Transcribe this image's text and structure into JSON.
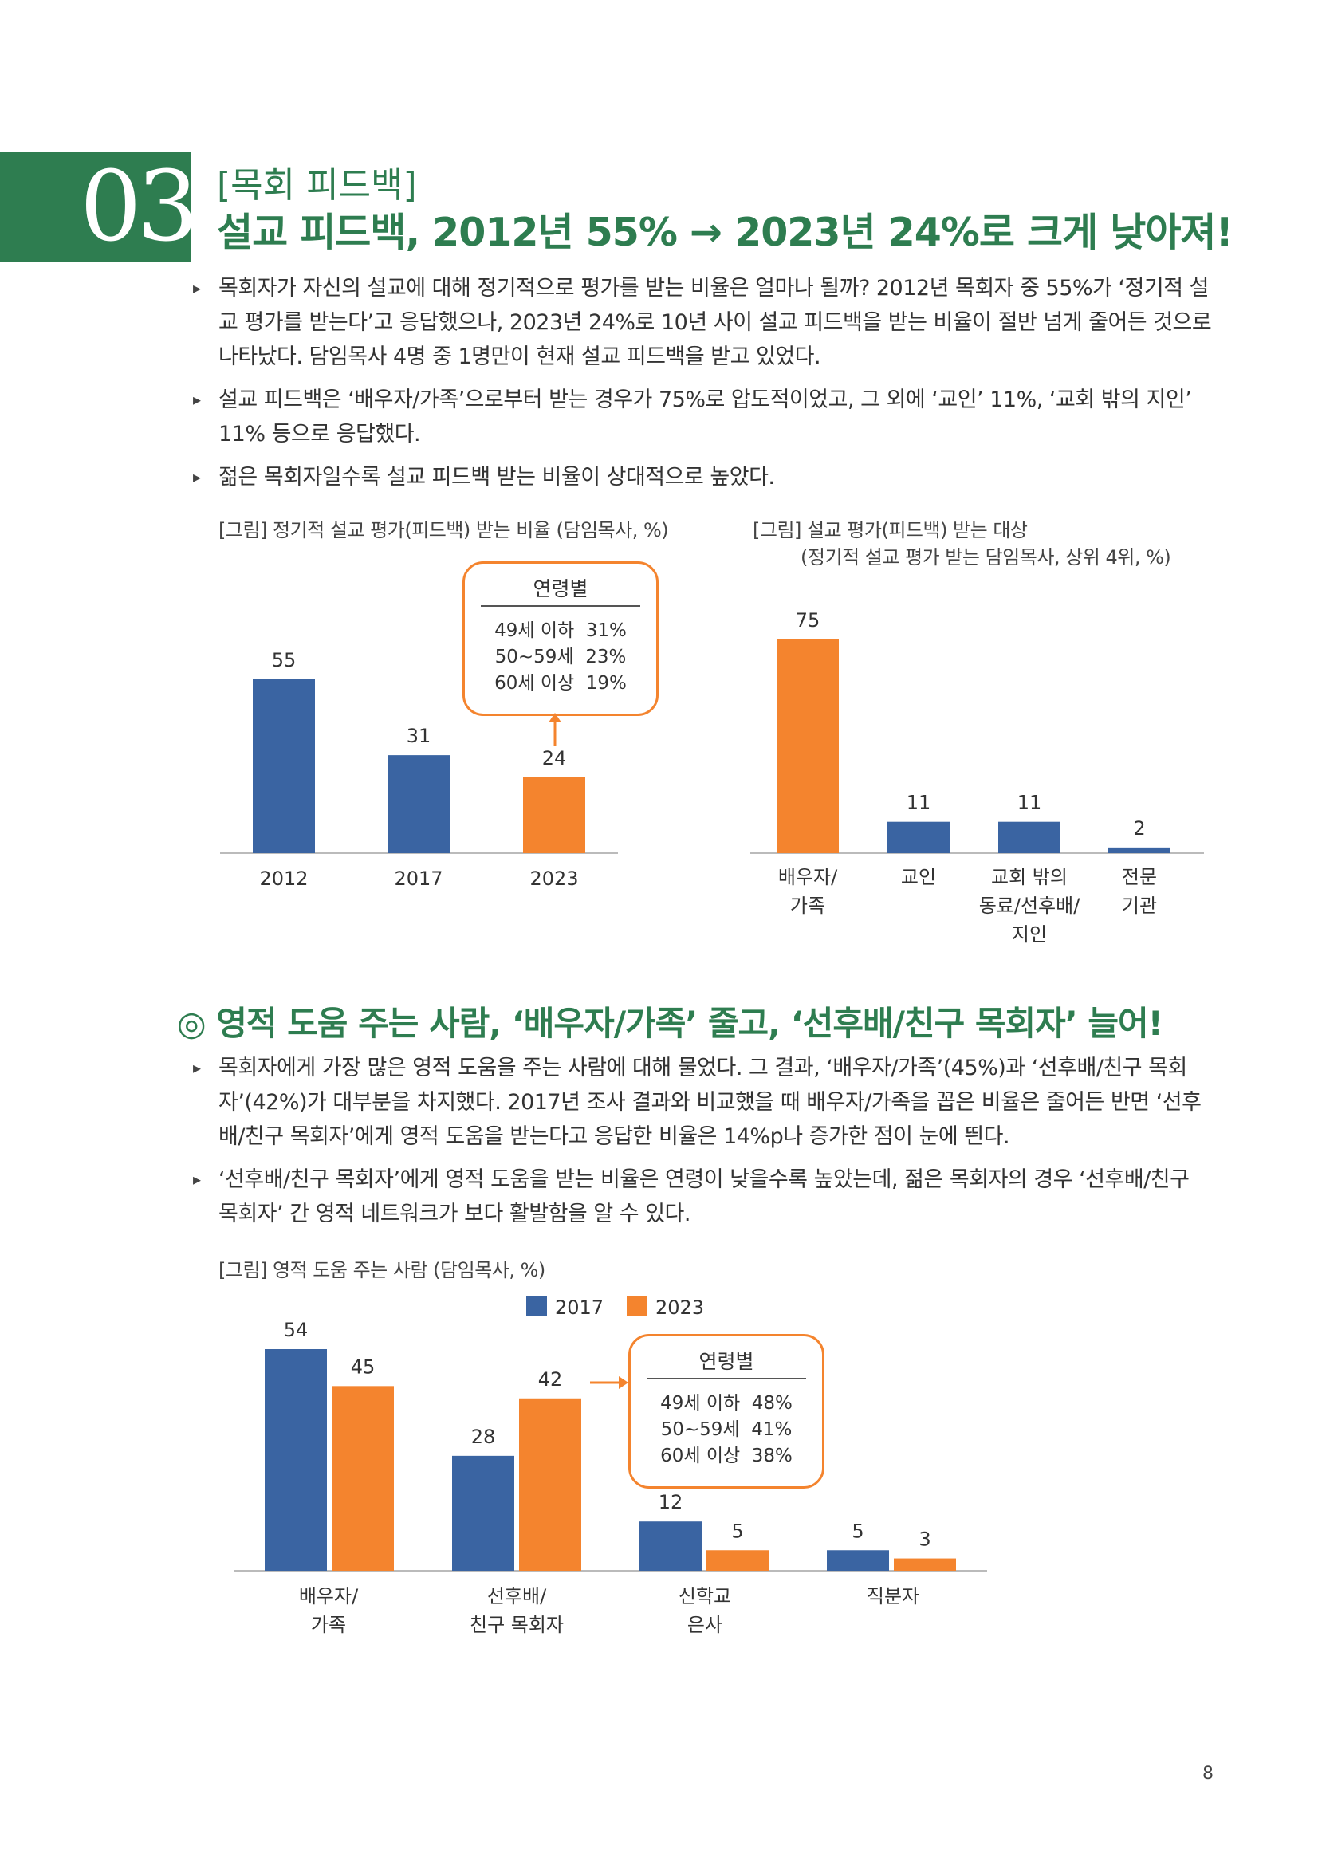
{
  "header": {
    "number": "03",
    "kicker": "[목회 피드백]",
    "title": "설교 피드백, 2012년 55% → 2023년 24%로 크게 낮아져!"
  },
  "bullets1": [
    "목회자가 자신의 설교에 대해 정기적으로 평가를 받는 비율은 얼마나 될까? 2012년 목회자 중 55%가 ‘정기적 설교 평가를 받는다’고 응답했으나, 2023년 24%로 10년 사이 설교 피드백을 받는 비율이 절반 넘게 줄어든 것으로 나타났다. 담임목사 4명 중 1명만이 현재 설교 피드백을 받고 있었다.",
    "설교 피드백은 ‘배우자/가족’으로부터 받는 경우가 75%로 압도적이었고, 그 외에 ‘교인’ 11%, ‘교회 밖의 지인’ 11% 등으로 응답했다.",
    "젊은 목회자일수록 설교 피드백 받는 비율이 상대적으로 높았다."
  ],
  "captions": {
    "c1": "[그림] 정기적 설교 평가(피드백) 받는 비율 (담임목사, %)",
    "c2a": "[그림] 설교 평가(피드백) 받는 대상",
    "c2b": "(정기적 설교 평가 받는 담임목사, 상위 4위, %)",
    "c3": "[그림] 영적 도움 주는 사람 (담임목사, %)"
  },
  "callout1": {
    "title": "연령별",
    "rows": [
      "49세 이하  31%",
      "50~59세  23%",
      "60세 이상  19%"
    ]
  },
  "section2": {
    "title": "◎ 영적 도움 주는 사람, ‘배우자/가족’ 줄고, ‘선후배/친구 목회자’ 늘어!"
  },
  "bullets2": [
    "목회자에게 가장 많은 영적 도움을 주는 사람에 대해 물었다. 그 결과, ‘배우자/가족’(45%)과 ‘선후배/친구 목회자’(42%)가 대부분을 차지했다. 2017년 조사 결과와 비교했을 때 배우자/가족을 꼽은 비율은 줄어든 반면 ‘선후배/친구 목회자’에게 영적 도움을 받는다고 응답한 비율은 14%p나 증가한 점이 눈에 띈다.",
    "‘선후배/친구 목회자’에게 영적 도움을 받는 비율은 연령이 낮을수록 높았는데, 젊은 목회자의 경우 ‘선후배/친구 목회자’ 간 영적 네트워크가 보다 활발함을 알 수 있다."
  ],
  "callout2": {
    "title": "연령별",
    "rows": [
      "49세 이하  48%",
      "50~59세  41%",
      "60세 이상  38%"
    ]
  },
  "page_number": "8",
  "colors": {
    "green": "#2e7d50",
    "blue": "#3a64a2",
    "orange": "#f4842e"
  },
  "chart_data": [
    {
      "type": "bar",
      "title": "[그림] 정기적 설교 평가(피드백) 받는 비율 (담임목사, %)",
      "categories": [
        "2012",
        "2017",
        "2023"
      ],
      "values": [
        55,
        31,
        24
      ],
      "highlight": [
        false,
        false,
        true
      ],
      "ylim": [
        0,
        75
      ]
    },
    {
      "type": "bar",
      "title": "[그림] 설교 평가(피드백) 받는 대상",
      "subtitle": "(정기적 설교 평가 받는 담임목사, 상위 4위, %)",
      "categories": [
        [
          "배우자/",
          "가족"
        ],
        [
          "교인"
        ],
        [
          "교회 밖의",
          "동료/선후배/",
          "지인"
        ],
        [
          "전문",
          "기관"
        ]
      ],
      "values": [
        75,
        11,
        11,
        2
      ],
      "highlight": [
        true,
        false,
        false,
        false
      ],
      "ylim": [
        0,
        75
      ]
    },
    {
      "type": "bar",
      "title": "[그림] 영적 도움 주는 사람 (담임목사, %)",
      "categories": [
        [
          "배우자/",
          "가족"
        ],
        [
          "선후배/",
          "친구 목회자"
        ],
        [
          "신학교",
          "은사"
        ],
        [
          "직분자"
        ]
      ],
      "series": [
        {
          "name": "2017",
          "values": [
            54,
            28,
            12,
            5
          ]
        },
        {
          "name": "2023",
          "values": [
            45,
            42,
            5,
            3
          ]
        }
      ],
      "legend": "top-center",
      "ylim": [
        0,
        54
      ]
    }
  ]
}
